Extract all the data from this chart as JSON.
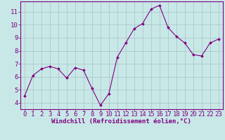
{
  "x": [
    0,
    1,
    2,
    3,
    4,
    5,
    6,
    7,
    8,
    9,
    10,
    11,
    12,
    13,
    14,
    15,
    16,
    17,
    18,
    19,
    20,
    21,
    22,
    23
  ],
  "y": [
    4.5,
    6.1,
    6.6,
    6.8,
    6.6,
    5.9,
    6.7,
    6.5,
    5.1,
    3.8,
    4.7,
    7.5,
    8.6,
    9.7,
    10.1,
    11.2,
    11.5,
    9.8,
    9.1,
    8.6,
    7.7,
    7.6,
    8.6,
    8.9
  ],
  "line_color": "#800080",
  "marker": "D",
  "marker_size": 2,
  "bg_color": "#c8e8e8",
  "grid_color": "#a0b8b8",
  "xlabel": "Windchill (Refroidissement éolien,°C)",
  "tick_color": "#800080",
  "ylim": [
    3.5,
    11.8
  ],
  "yticks": [
    4,
    5,
    6,
    7,
    8,
    9,
    10,
    11
  ],
  "xlim": [
    -0.5,
    23.5
  ],
  "xticks": [
    0,
    1,
    2,
    3,
    4,
    5,
    6,
    7,
    8,
    9,
    10,
    11,
    12,
    13,
    14,
    15,
    16,
    17,
    18,
    19,
    20,
    21,
    22,
    23
  ],
  "tick_fontsize": 6.5,
  "xlabel_fontsize": 6.5,
  "spine_color": "#800080"
}
